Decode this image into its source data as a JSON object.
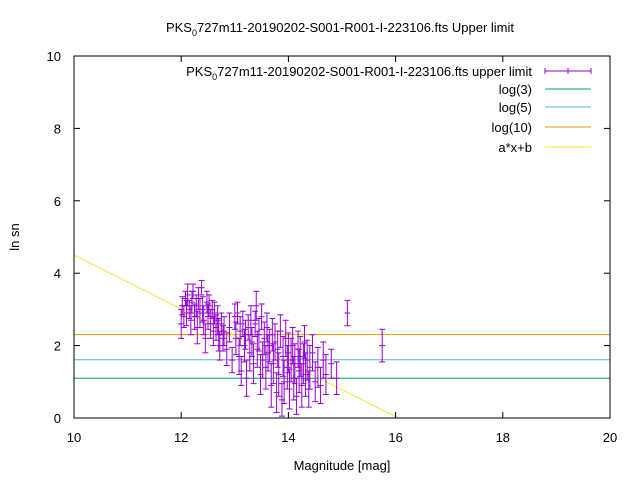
{
  "chart_data": {
    "type": "scatter",
    "title": "PKS 0727m11-20190202-S001-R001-I-223106.fts Upper limit",
    "title_parts": {
      "prefix": "PKS",
      "subscript": "0",
      "rest": "727m11-20190202-S001-R001-I-223106.fts Upper limit"
    },
    "xlabel": "Magnitude [mag]",
    "ylabel": "ln sn",
    "xlim": [
      10,
      20
    ],
    "ylim": [
      0,
      10
    ],
    "xticks": [
      "10",
      "12",
      "14",
      "16",
      "18",
      "20"
    ],
    "yticks": [
      "0",
      "2",
      "4",
      "6",
      "8",
      "10"
    ],
    "grid": false,
    "legend_position": "top-right",
    "legend": [
      {
        "label": "PKS 0727m11-20190202-S001-R001-I-223106.fts upper limit",
        "prefix": "PKS",
        "subscript": "0",
        "rest": "727m11-20190202-S001-R001-I-223106.fts upper limit",
        "color": "#9400d3",
        "style": "errorbar"
      },
      {
        "label": "log(3)",
        "color": "#009e73",
        "style": "line"
      },
      {
        "label": "log(5)",
        "color": "#56b4e9",
        "style": "line"
      },
      {
        "label": "log(10)",
        "color": "#e69f00",
        "style": "line"
      },
      {
        "label": "a*x+b",
        "color": "#f0e442",
        "style": "line"
      }
    ],
    "series": [
      {
        "name": "PKS 0727m11-20190202-S001-R001-I-223106.fts upper limit",
        "color": "#9400d3",
        "points": [
          [
            12.0,
            2.6,
            0.4
          ],
          [
            12.02,
            3.1,
            0.25
          ],
          [
            12.05,
            2.8,
            0.3
          ],
          [
            12.08,
            3.3,
            0.2
          ],
          [
            12.1,
            2.9,
            0.35
          ],
          [
            12.12,
            3.4,
            0.3
          ],
          [
            12.15,
            3.0,
            0.25
          ],
          [
            12.18,
            2.7,
            0.4
          ],
          [
            12.2,
            3.2,
            0.3
          ],
          [
            12.22,
            3.5,
            0.2
          ],
          [
            12.25,
            2.8,
            0.35
          ],
          [
            12.28,
            3.1,
            0.3
          ],
          [
            12.3,
            2.5,
            0.45
          ],
          [
            12.32,
            3.3,
            0.3
          ],
          [
            12.35,
            2.9,
            0.4
          ],
          [
            12.38,
            3.6,
            0.2
          ],
          [
            12.4,
            3.0,
            0.35
          ],
          [
            12.42,
            2.7,
            0.4
          ],
          [
            12.45,
            2.2,
            0.4
          ],
          [
            12.48,
            3.2,
            0.3
          ],
          [
            12.5,
            2.8,
            0.35
          ],
          [
            12.52,
            3.1,
            0.3
          ],
          [
            12.55,
            2.6,
            0.4
          ],
          [
            12.58,
            3.0,
            0.25
          ],
          [
            12.6,
            2.4,
            0.4
          ],
          [
            12.62,
            2.9,
            0.3
          ],
          [
            12.65,
            2.5,
            0.35
          ],
          [
            12.68,
            2.7,
            0.4
          ],
          [
            12.7,
            2.3,
            0.45
          ],
          [
            12.72,
            2.0,
            0.4
          ],
          [
            12.75,
            2.6,
            0.3
          ],
          [
            12.78,
            2.2,
            0.35
          ],
          [
            12.8,
            2.4,
            0.4
          ],
          [
            12.85,
            1.9,
            0.45
          ],
          [
            12.9,
            2.5,
            0.4
          ],
          [
            12.95,
            1.6,
            0.35
          ],
          [
            13.0,
            2.8,
            0.35
          ],
          [
            13.02,
            2.2,
            0.45
          ],
          [
            13.05,
            2.9,
            0.3
          ],
          [
            13.08,
            1.7,
            0.5
          ],
          [
            13.1,
            2.4,
            0.4
          ],
          [
            13.12,
            1.3,
            0.4
          ],
          [
            13.15,
            2.6,
            0.35
          ],
          [
            13.18,
            2.0,
            0.45
          ],
          [
            13.2,
            2.3,
            0.4
          ],
          [
            13.22,
            1.1,
            0.5
          ],
          [
            13.25,
            2.5,
            0.35
          ],
          [
            13.28,
            1.8,
            0.5
          ],
          [
            13.3,
            2.7,
            0.4
          ],
          [
            13.32,
            2.1,
            0.4
          ],
          [
            13.35,
            1.5,
            0.55
          ],
          [
            13.38,
            2.6,
            0.35
          ],
          [
            13.4,
            3.1,
            0.4
          ],
          [
            13.42,
            1.9,
            0.5
          ],
          [
            13.45,
            2.3,
            0.45
          ],
          [
            13.48,
            1.2,
            0.55
          ],
          [
            13.5,
            2.8,
            0.35
          ],
          [
            13.52,
            1.6,
            0.5
          ],
          [
            13.55,
            2.2,
            0.45
          ],
          [
            13.58,
            1.4,
            0.6
          ],
          [
            13.6,
            2.5,
            0.4
          ],
          [
            13.62,
            1.8,
            0.5
          ],
          [
            13.65,
            2.0,
            0.45
          ],
          [
            13.68,
            0.9,
            0.6
          ],
          [
            13.7,
            2.3,
            0.45
          ],
          [
            13.72,
            1.5,
            0.55
          ],
          [
            13.75,
            2.1,
            0.5
          ],
          [
            13.78,
            0.7,
            0.55
          ],
          [
            13.8,
            1.9,
            0.5
          ],
          [
            13.82,
            1.2,
            0.6
          ],
          [
            13.85,
            2.4,
            0.45
          ],
          [
            13.88,
            0.5,
            0.45
          ],
          [
            13.9,
            1.7,
            0.55
          ],
          [
            13.92,
            1.0,
            0.6
          ],
          [
            13.95,
            2.2,
            0.5
          ],
          [
            13.98,
            1.4,
            0.6
          ],
          [
            14.0,
            1.8,
            0.55
          ],
          [
            14.02,
            0.8,
            0.55
          ],
          [
            14.05,
            1.6,
            0.6
          ],
          [
            14.08,
            2.0,
            0.5
          ],
          [
            14.1,
            1.1,
            0.6
          ],
          [
            14.12,
            1.5,
            0.55
          ],
          [
            14.15,
            0.6,
            0.5
          ],
          [
            14.18,
            1.9,
            0.5
          ],
          [
            14.2,
            1.3,
            0.6
          ],
          [
            14.22,
            1.7,
            0.55
          ],
          [
            14.25,
            0.9,
            0.6
          ],
          [
            14.28,
            1.5,
            0.55
          ],
          [
            14.3,
            2.1,
            0.45
          ],
          [
            14.32,
            1.2,
            0.6
          ],
          [
            14.35,
            1.6,
            0.55
          ],
          [
            14.38,
            0.8,
            0.5
          ],
          [
            14.4,
            1.4,
            0.6
          ],
          [
            14.45,
            1.8,
            0.5
          ],
          [
            14.5,
            1.0,
            0.55
          ],
          [
            14.55,
            1.4,
            0.55
          ],
          [
            14.6,
            0.9,
            0.5
          ],
          [
            14.65,
            1.6,
            0.5
          ],
          [
            14.7,
            1.2,
            0.55
          ],
          [
            14.8,
            1.5,
            0.4
          ],
          [
            14.9,
            1.1,
            0.45
          ],
          [
            15.1,
            2.9,
            0.35
          ],
          [
            15.75,
            2.0,
            0.45
          ]
        ]
      }
    ],
    "hlines": [
      {
        "name": "log(3)",
        "y": 1.0986,
        "color": "#009e73"
      },
      {
        "name": "log(5)",
        "y": 1.6094,
        "color": "#56b4e9"
      },
      {
        "name": "log(10)",
        "y": 2.3026,
        "color": "#e69f00"
      }
    ],
    "fit_line": {
      "name": "a*x+b",
      "color": "#f0e442",
      "x": [
        10,
        16.05
      ],
      "y": [
        4.5,
        0.0
      ]
    }
  }
}
